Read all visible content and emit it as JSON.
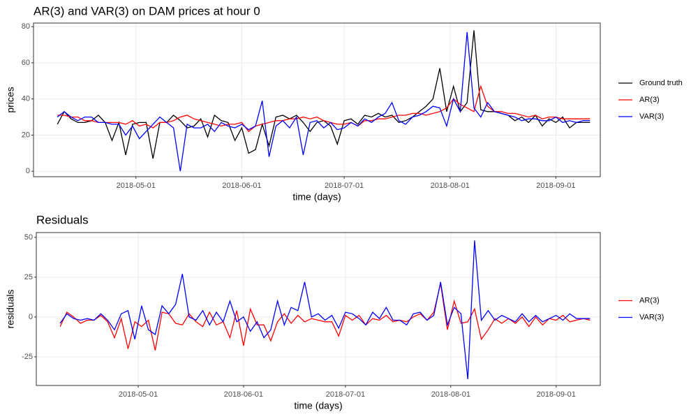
{
  "chart_data": [
    {
      "type": "line",
      "title": "AR(3) and VAR(3) on DAM prices at hour 0",
      "x_label": "time (days)",
      "y_label": "prices",
      "legend": "right",
      "grid": true,
      "xlim": [
        "2018-04-01",
        "2018-09-14"
      ],
      "xticks": [
        "2018-05-01",
        "2018-06-01",
        "2018-07-01",
        "2018-08-01",
        "2018-09-01"
      ],
      "ylim": [
        -3,
        82
      ],
      "yticks": [
        0,
        20,
        40,
        60,
        80
      ],
      "x": [
        "2018-04-08",
        "2018-04-10",
        "2018-04-12",
        "2018-04-14",
        "2018-04-16",
        "2018-04-18",
        "2018-04-20",
        "2018-04-22",
        "2018-04-24",
        "2018-04-26",
        "2018-04-28",
        "2018-04-30",
        "2018-05-02",
        "2018-05-04",
        "2018-05-06",
        "2018-05-08",
        "2018-05-10",
        "2018-05-12",
        "2018-05-14",
        "2018-05-16",
        "2018-05-18",
        "2018-05-20",
        "2018-05-22",
        "2018-05-24",
        "2018-05-26",
        "2018-05-28",
        "2018-05-30",
        "2018-06-01",
        "2018-06-03",
        "2018-06-05",
        "2018-06-07",
        "2018-06-09",
        "2018-06-11",
        "2018-06-13",
        "2018-06-15",
        "2018-06-17",
        "2018-06-19",
        "2018-06-21",
        "2018-06-23",
        "2018-06-25",
        "2018-06-27",
        "2018-06-29",
        "2018-07-01",
        "2018-07-03",
        "2018-07-05",
        "2018-07-07",
        "2018-07-09",
        "2018-07-11",
        "2018-07-13",
        "2018-07-15",
        "2018-07-17",
        "2018-07-19",
        "2018-07-21",
        "2018-07-23",
        "2018-07-25",
        "2018-07-27",
        "2018-07-29",
        "2018-07-31",
        "2018-08-02",
        "2018-08-04",
        "2018-08-06",
        "2018-08-08",
        "2018-08-10",
        "2018-08-12",
        "2018-08-14",
        "2018-08-16",
        "2018-08-18",
        "2018-08-20",
        "2018-08-22",
        "2018-08-24",
        "2018-08-26",
        "2018-08-28",
        "2018-08-30",
        "2018-09-01",
        "2018-09-03",
        "2018-09-05",
        "2018-09-07",
        "2018-09-09",
        "2018-09-11"
      ],
      "series": [
        {
          "name": "Ground truth",
          "color": "#000000",
          "values": [
            26,
            33,
            29,
            27,
            27,
            28,
            31,
            27,
            17,
            27,
            9,
            26,
            27,
            27,
            7,
            27,
            27,
            31,
            28,
            24,
            25,
            29,
            19,
            31,
            28,
            27,
            17,
            24,
            10,
            12,
            26,
            14,
            30,
            31,
            29,
            31,
            27,
            22,
            27,
            28,
            25,
            15,
            28,
            29,
            26,
            31,
            30,
            32,
            30,
            31,
            27,
            28,
            30,
            33,
            36,
            40,
            57,
            33,
            47,
            33,
            38,
            78,
            34,
            33,
            33,
            32,
            31,
            28,
            30,
            27,
            31,
            25,
            29,
            27,
            30,
            24,
            27,
            27,
            27
          ]
        },
        {
          "name": "AR(3)",
          "color": "#ff0000",
          "values": [
            31,
            31,
            30,
            30,
            28,
            28,
            27,
            27,
            27,
            27,
            26,
            28,
            25,
            26,
            24,
            27,
            27,
            28,
            30,
            31,
            29,
            28,
            27,
            26,
            25,
            26,
            26,
            27,
            22,
            25,
            26,
            27,
            28,
            28,
            29,
            29,
            30,
            29,
            30,
            28,
            27,
            26,
            26,
            27,
            25,
            28,
            28,
            29,
            29,
            30,
            31,
            31,
            32,
            32,
            31,
            32,
            33,
            35,
            40,
            37,
            35,
            33,
            47,
            36,
            33,
            33,
            32,
            32,
            31,
            30,
            31,
            29,
            30,
            30,
            29,
            29,
            29,
            29,
            29
          ]
        },
        {
          "name": "VAR(3)",
          "color": "#0000ff",
          "values": [
            30,
            33,
            30,
            28,
            30,
            30,
            27,
            27,
            26,
            26,
            20,
            25,
            18,
            22,
            26,
            30,
            27,
            24,
            0,
            26,
            24,
            24,
            26,
            22,
            27,
            25,
            24,
            26,
            23,
            25,
            39,
            8,
            25,
            28,
            24,
            30,
            9,
            27,
            28,
            24,
            27,
            23,
            24,
            27,
            25,
            29,
            27,
            30,
            32,
            38,
            28,
            26,
            30,
            31,
            33,
            36,
            35,
            25,
            40,
            33,
            77,
            35,
            30,
            38,
            33,
            32,
            31,
            30,
            28,
            29,
            29,
            28,
            28,
            30,
            27,
            28,
            27,
            28,
            28
          ]
        }
      ]
    },
    {
      "type": "line",
      "title": "Residuals",
      "x_label": "time (days)",
      "y_label": "residuals",
      "legend": "right",
      "grid": true,
      "xlim": [
        "2018-04-01",
        "2018-09-14"
      ],
      "xticks": [
        "2018-05-01",
        "2018-06-01",
        "2018-07-01",
        "2018-08-01",
        "2018-09-01"
      ],
      "ylim": [
        -43,
        53
      ],
      "yticks": [
        -25,
        0,
        25,
        50
      ],
      "x": [
        "2018-04-08",
        "2018-04-10",
        "2018-04-12",
        "2018-04-14",
        "2018-04-16",
        "2018-04-18",
        "2018-04-20",
        "2018-04-22",
        "2018-04-24",
        "2018-04-26",
        "2018-04-28",
        "2018-04-30",
        "2018-05-02",
        "2018-05-04",
        "2018-05-06",
        "2018-05-08",
        "2018-05-10",
        "2018-05-12",
        "2018-05-14",
        "2018-05-16",
        "2018-05-18",
        "2018-05-20",
        "2018-05-22",
        "2018-05-24",
        "2018-05-26",
        "2018-05-28",
        "2018-05-30",
        "2018-06-01",
        "2018-06-03",
        "2018-06-05",
        "2018-06-07",
        "2018-06-09",
        "2018-06-11",
        "2018-06-13",
        "2018-06-15",
        "2018-06-17",
        "2018-06-19",
        "2018-06-21",
        "2018-06-23",
        "2018-06-25",
        "2018-06-27",
        "2018-06-29",
        "2018-07-01",
        "2018-07-03",
        "2018-07-05",
        "2018-07-07",
        "2018-07-09",
        "2018-07-11",
        "2018-07-13",
        "2018-07-15",
        "2018-07-17",
        "2018-07-19",
        "2018-07-21",
        "2018-07-23",
        "2018-07-25",
        "2018-07-27",
        "2018-07-29",
        "2018-07-31",
        "2018-08-02",
        "2018-08-04",
        "2018-08-06",
        "2018-08-08",
        "2018-08-10",
        "2018-08-12",
        "2018-08-14",
        "2018-08-16",
        "2018-08-18",
        "2018-08-20",
        "2018-08-22",
        "2018-08-24",
        "2018-08-26",
        "2018-08-28",
        "2018-08-30",
        "2018-09-01",
        "2018-09-03",
        "2018-09-05",
        "2018-09-07",
        "2018-09-09",
        "2018-09-11"
      ],
      "series": [
        {
          "name": "AR(3)",
          "color": "#ff0000",
          "values": [
            -6,
            3,
            0,
            -4,
            -2,
            -2,
            1,
            -3,
            -13,
            -1,
            -20,
            -3,
            -6,
            -2,
            -21,
            3,
            2,
            -4,
            -5,
            2,
            -3,
            -6,
            3,
            -5,
            -3,
            -13,
            4,
            -18,
            5,
            -5,
            -5,
            -15,
            -3,
            2,
            -4,
            1,
            -3,
            -1,
            -2,
            -3,
            -3,
            -12,
            1,
            -2,
            1,
            -5,
            -1,
            -2,
            1,
            -3,
            -2,
            -3,
            0,
            2,
            -2,
            3,
            21,
            -8,
            10,
            -4,
            -3,
            5,
            -14,
            -8,
            -1,
            -4,
            -1,
            -4,
            0,
            -6,
            0,
            -5,
            -1,
            -2,
            1,
            -3,
            -2,
            -1,
            -2
          ]
        },
        {
          "name": "VAR(3)",
          "color": "#0000ff",
          "values": [
            -4,
            2,
            -1,
            -2,
            -1,
            -2,
            2,
            -2,
            -8,
            2,
            4,
            -14,
            7,
            -8,
            -11,
            7,
            2,
            8,
            27,
            0,
            -2,
            4,
            -5,
            3,
            -3,
            10,
            -3,
            0,
            -9,
            -3,
            -13,
            -8,
            10,
            -5,
            6,
            4,
            22,
            0,
            2,
            -2,
            1,
            -7,
            3,
            2,
            -1,
            -5,
            3,
            -1,
            6,
            -2,
            -2,
            -5,
            2,
            3,
            -2,
            1,
            22,
            -5,
            6,
            2,
            -39,
            48,
            -2,
            4,
            -2,
            1,
            -1,
            -3,
            2,
            -3,
            1,
            -3,
            -1,
            1,
            -2,
            2,
            -1,
            -1,
            -1
          ]
        }
      ]
    }
  ]
}
